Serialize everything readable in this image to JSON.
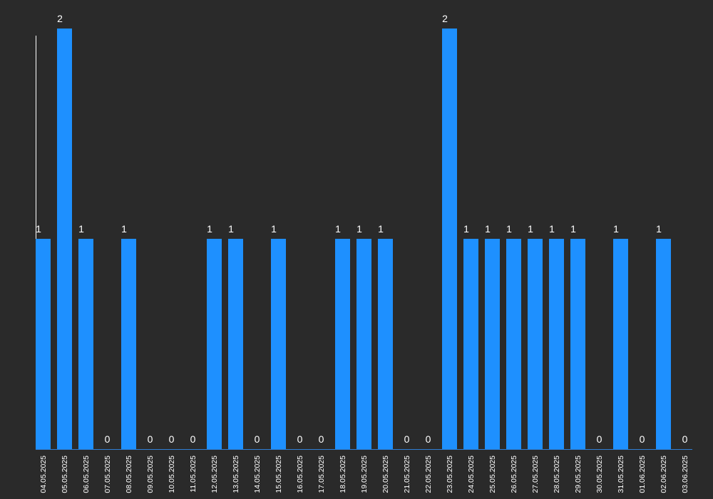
{
  "chart_data": {
    "type": "bar",
    "title": "",
    "xlabel": "",
    "ylabel": "",
    "categories": [
      "04.05.2025",
      "05.05.2025",
      "06.05.2025",
      "07.05.2025",
      "08.05.2025",
      "09.05.2025",
      "10.05.2025",
      "11.05.2025",
      "12.05.2025",
      "13.05.2025",
      "14.05.2025",
      "15.05.2025",
      "16.05.2025",
      "17.05.2025",
      "18.05.2025",
      "19.05.2025",
      "20.05.2025",
      "21.05.2025",
      "22.05.2025",
      "23.05.2025",
      "24.05.2025",
      "25.05.2025",
      "26.05.2025",
      "27.05.2025",
      "28.05.2025",
      "29.05.2025",
      "30.05.2025",
      "31.05.2025",
      "01.06.2025",
      "02.06.2025",
      "03.06.2025"
    ],
    "values": [
      1,
      2,
      1,
      0,
      1,
      0,
      0,
      0,
      1,
      1,
      0,
      1,
      0,
      0,
      1,
      1,
      1,
      0,
      0,
      2,
      1,
      1,
      1,
      1,
      1,
      1,
      0,
      1,
      0,
      1,
      0
    ],
    "ylim": [
      0,
      2
    ],
    "grid": false,
    "legend": "none",
    "data_labels": true
  },
  "colors": {
    "background": "#2a2a2a",
    "bar": "#1e90ff",
    "axis": "#ffffff",
    "text": "#ffffff"
  }
}
